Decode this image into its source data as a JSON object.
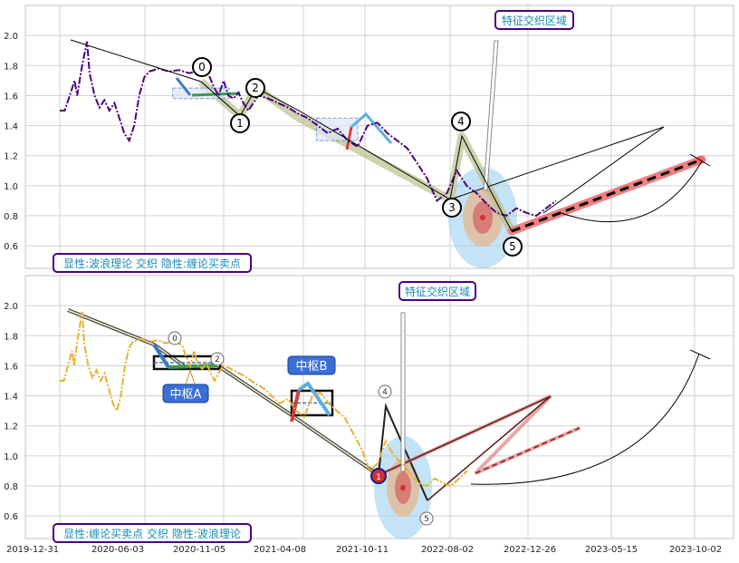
{
  "chart_data": [
    {
      "type": "line",
      "panel": "top",
      "ylim": [
        0.45,
        2.2
      ],
      "yticks": [
        "0.6",
        "0.8",
        "1.0",
        "1.2",
        "1.4",
        "1.6",
        "1.8",
        "2.0"
      ],
      "ytick_values": [
        0.6,
        0.8,
        1.0,
        1.2,
        1.4,
        1.6,
        1.8,
        2.0
      ],
      "grid": true,
      "price_color": "#4b0082",
      "price_style": "dash-dot",
      "price": [
        [
          0,
          1.5
        ],
        [
          0.01,
          1.5
        ],
        [
          0.02,
          1.6
        ],
        [
          0.03,
          1.7
        ],
        [
          0.035,
          1.6
        ],
        [
          0.045,
          1.8
        ],
        [
          0.055,
          1.96
        ],
        [
          0.06,
          1.75
        ],
        [
          0.07,
          1.6
        ],
        [
          0.08,
          1.52
        ],
        [
          0.09,
          1.57
        ],
        [
          0.1,
          1.5
        ],
        [
          0.11,
          1.55
        ],
        [
          0.12,
          1.45
        ],
        [
          0.13,
          1.35
        ],
        [
          0.14,
          1.3
        ],
        [
          0.15,
          1.4
        ],
        [
          0.16,
          1.6
        ],
        [
          0.17,
          1.72
        ],
        [
          0.18,
          1.76
        ],
        [
          0.2,
          1.78
        ],
        [
          0.22,
          1.76
        ],
        [
          0.24,
          1.77
        ],
        [
          0.26,
          1.75
        ],
        [
          0.28,
          1.76
        ],
        [
          0.3,
          1.74
        ],
        [
          0.31,
          1.66
        ],
        [
          0.32,
          1.6
        ],
        [
          0.33,
          1.7
        ],
        [
          0.34,
          1.6
        ],
        [
          0.35,
          1.58
        ],
        [
          0.36,
          1.62
        ],
        [
          0.37,
          1.55
        ],
        [
          0.38,
          1.5
        ],
        [
          0.39,
          1.55
        ],
        [
          0.4,
          1.6
        ],
        [
          0.42,
          1.58
        ],
        [
          0.44,
          1.55
        ],
        [
          0.46,
          1.52
        ],
        [
          0.48,
          1.48
        ],
        [
          0.5,
          1.45
        ],
        [
          0.52,
          1.4
        ],
        [
          0.54,
          1.35
        ],
        [
          0.56,
          1.38
        ],
        [
          0.58,
          1.3
        ],
        [
          0.6,
          1.26
        ],
        [
          0.62,
          1.4
        ],
        [
          0.64,
          1.42
        ],
        [
          0.66,
          1.35
        ],
        [
          0.68,
          1.3
        ],
        [
          0.7,
          1.25
        ],
        [
          0.72,
          1.15
        ],
        [
          0.74,
          1.05
        ],
        [
          0.76,
          0.9
        ],
        [
          0.78,
          0.95
        ],
        [
          0.8,
          1.1
        ],
        [
          0.82,
          1.0
        ],
        [
          0.84,
          0.95
        ],
        [
          0.86,
          0.88
        ],
        [
          0.88,
          0.82
        ],
        [
          0.9,
          0.8
        ],
        [
          0.92,
          0.85
        ],
        [
          0.94,
          0.82
        ],
        [
          0.96,
          0.8
        ],
        [
          0.98,
          0.85
        ],
        [
          1.0,
          0.9
        ]
      ],
      "wave_line": [
        [
          0.058,
          1.97
        ],
        [
          0.27,
          1.72
        ],
        [
          0.36,
          1.58
        ],
        [
          0.42,
          1.45
        ],
        [
          0.46,
          1.55
        ],
        [
          0.55,
          1.38
        ],
        [
          0.68,
          0.89
        ],
        [
          0.74,
          1.32
        ],
        [
          0.78,
          0.75
        ],
        [
          1.22,
          1.38
        ]
      ],
      "wave_points": [
        {
          "label": "0",
          "x": 0.27,
          "y": 1.77
        },
        {
          "label": "1",
          "x": 0.33,
          "y": 1.4
        },
        {
          "label": "2",
          "x": 0.375,
          "y": 1.63
        },
        {
          "label": "3",
          "x": 0.66,
          "y": 0.86
        },
        {
          "label": "4",
          "x": 0.71,
          "y": 1.42
        },
        {
          "label": "5",
          "x": 0.76,
          "y": 0.58
        }
      ],
      "pivot_boxes": [
        {
          "x0": 0.22,
          "x1": 0.33,
          "y0": 1.58,
          "y1": 1.65
        },
        {
          "x0": 0.5,
          "x1": 0.58,
          "y0": 1.3,
          "y1": 1.45
        }
      ],
      "projection": {
        "x0": 0.76,
        "y0": 0.7,
        "x1": 1.02,
        "y1": 1.18
      },
      "annotation_title": "特征交织区域",
      "legend": "显性:波浪理论 交织 隐性:缠论买卖点"
    },
    {
      "type": "line",
      "panel": "bottom",
      "ylim": [
        0.45,
        2.2
      ],
      "yticks": [
        "0.6",
        "0.8",
        "1.0",
        "1.2",
        "1.4",
        "1.6",
        "1.8",
        "2.0"
      ],
      "ytick_values": [
        0.6,
        0.8,
        1.0,
        1.2,
        1.4,
        1.6,
        1.8,
        2.0
      ],
      "grid": true,
      "x_ticks": [
        "2019-12-31",
        "2020-06-03",
        "2020-11-05",
        "2021-04-08",
        "2021-10-11",
        "2022-08-02",
        "2022-12-26",
        "2023-05-15",
        "2023-10-02"
      ],
      "price_color": "#e8b030",
      "price_style": "dash-dot",
      "wave_points": [
        {
          "label": "0",
          "x": 0.3,
          "y": 1.75
        },
        {
          "label": "2",
          "x": 0.38,
          "y": 1.63
        },
        {
          "label": "4",
          "x": 0.6,
          "y": 1.41
        },
        {
          "label": "5",
          "x": 0.66,
          "y": 0.6
        },
        {
          "label": "1",
          "x": 0.58,
          "y": 0.89
        }
      ],
      "pivots": [
        {
          "label": "中枢A",
          "x0": 0.23,
          "x1": 0.33,
          "y0": 1.57,
          "y1": 1.65
        },
        {
          "label": "中枢B",
          "x0": 0.49,
          "x1": 0.54,
          "y0": 1.27,
          "y1": 1.43
        }
      ],
      "annotation_title": "特征交织区域",
      "legend": "显性:缠论买卖点 交织 隐性:波浪理论"
    }
  ]
}
